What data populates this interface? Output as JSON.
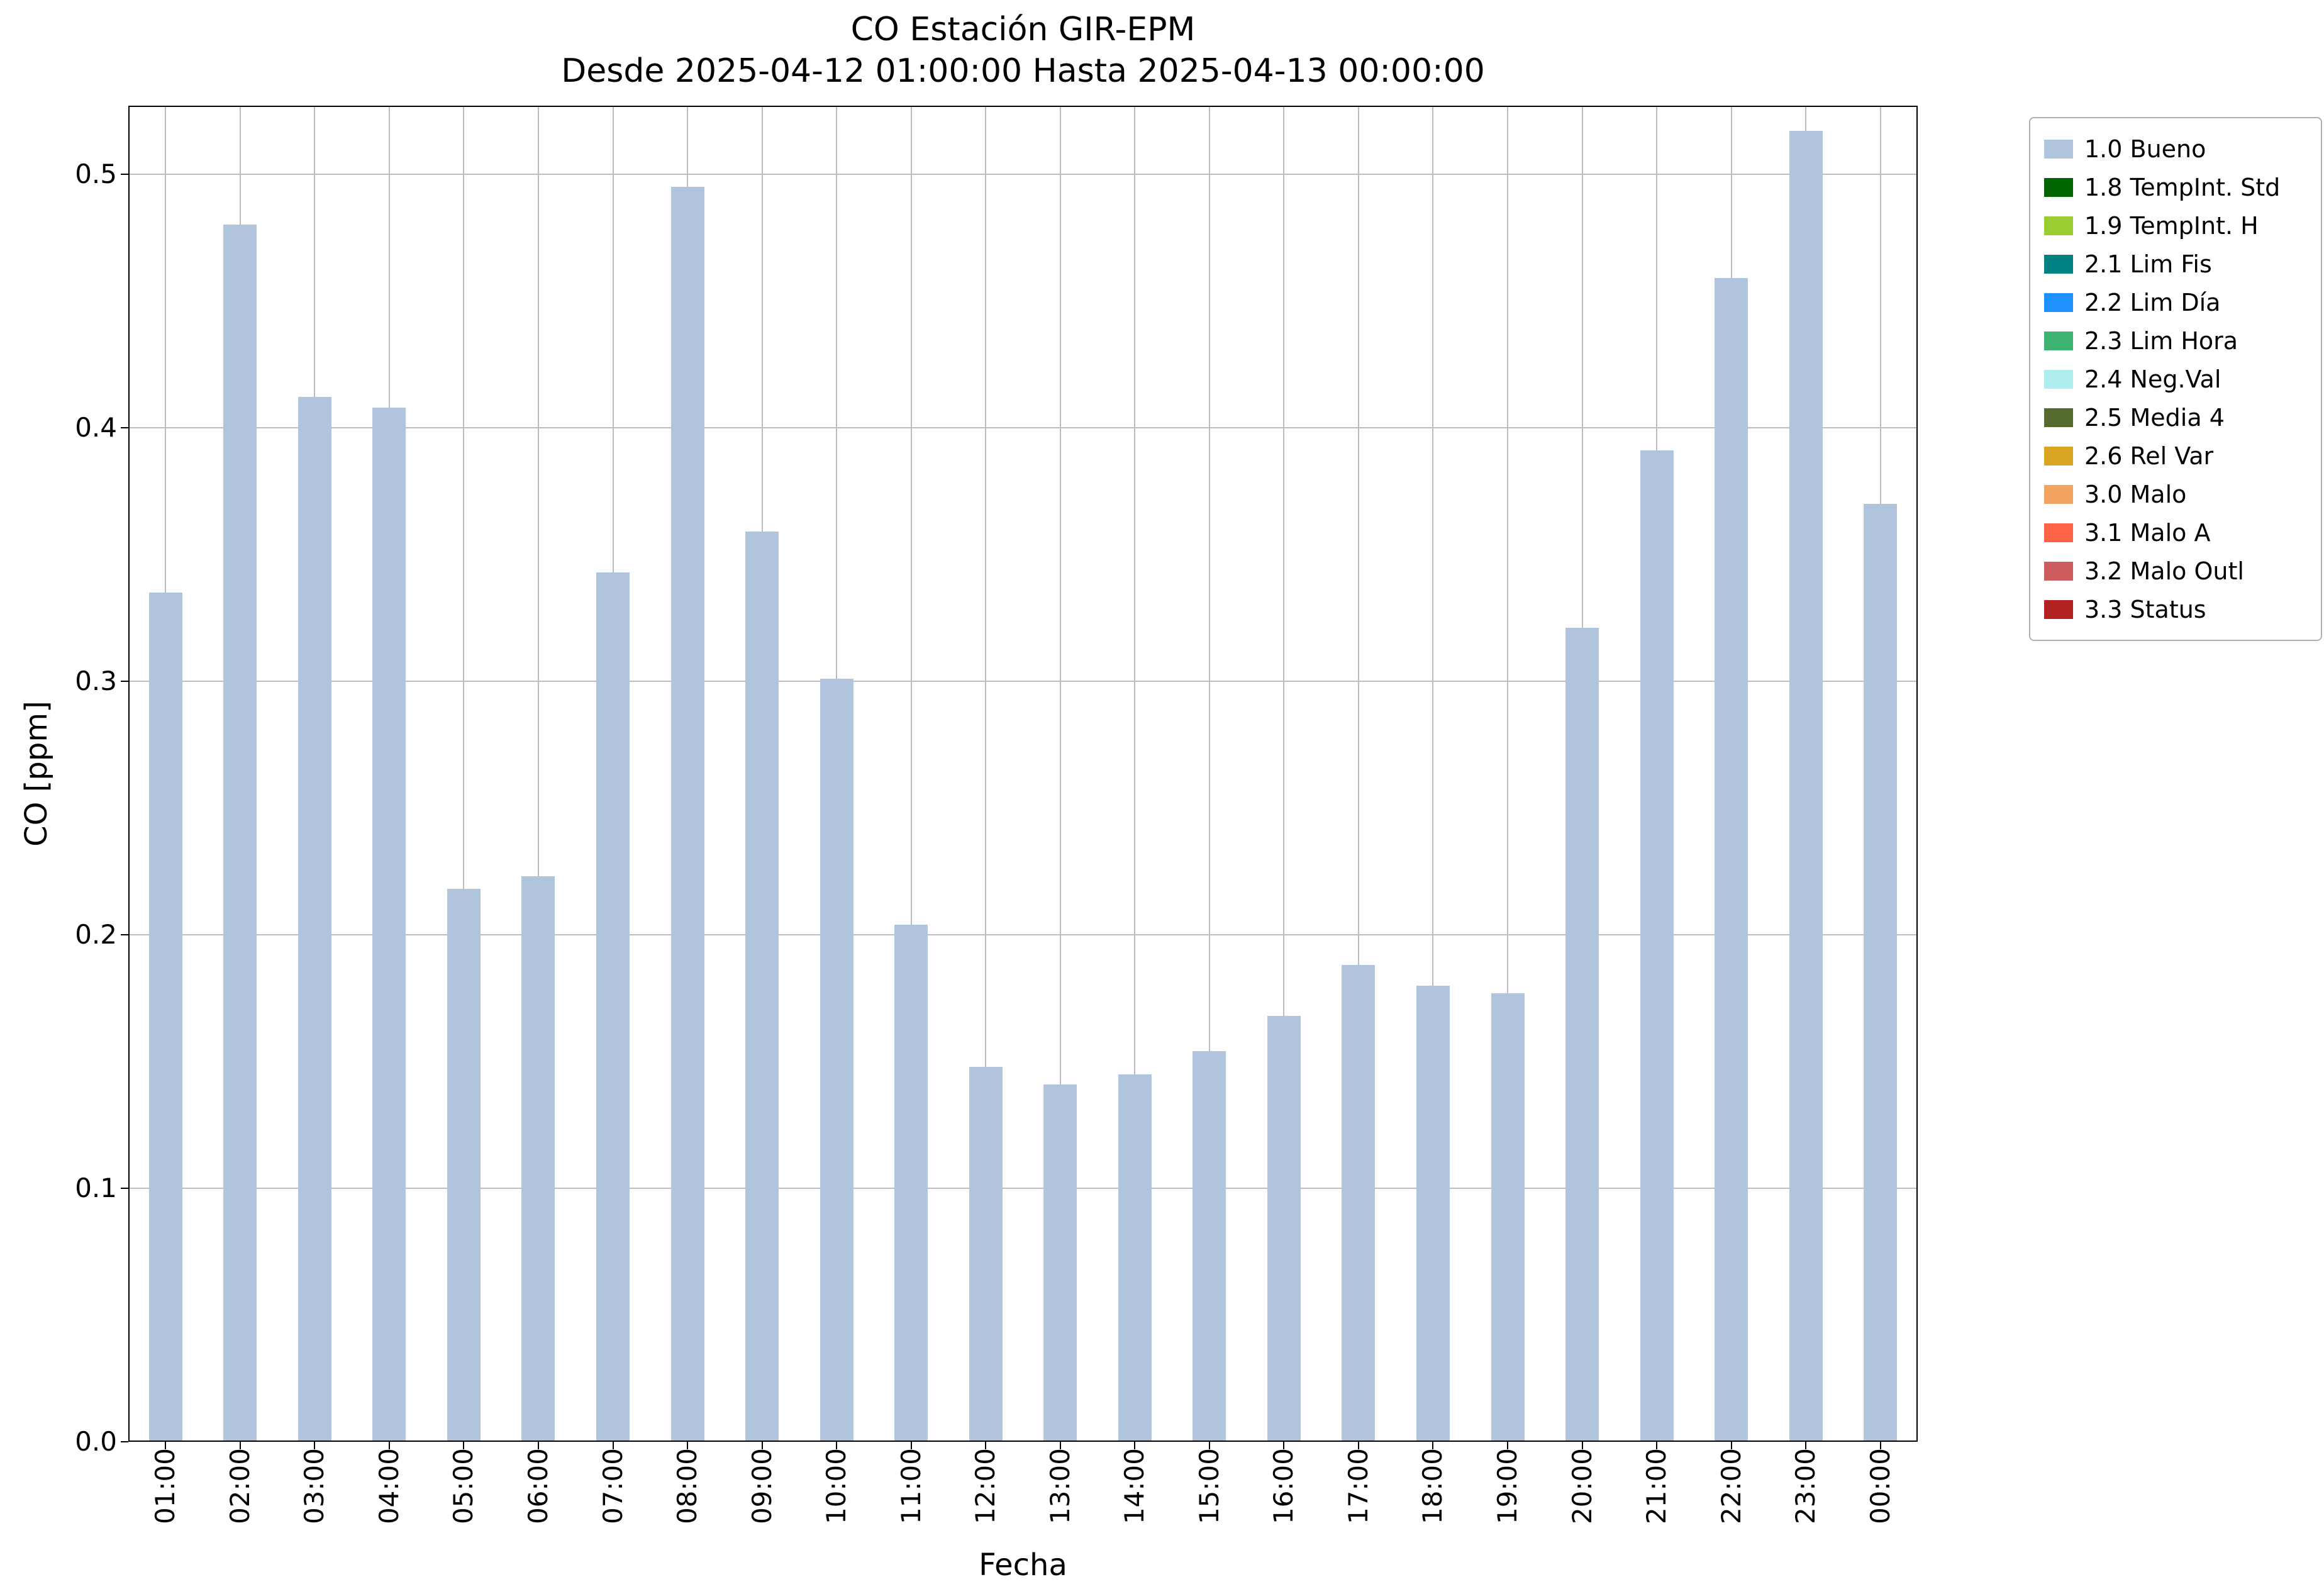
{
  "chart_data": {
    "type": "bar",
    "title": "CO Estación GIR-EPM",
    "subtitle": "Desde 2025-04-12 01:00:00 Hasta 2025-04-13 00:00:00",
    "xlabel": "Fecha",
    "ylabel": "CO [ppm]",
    "ylim": [
      0,
      0.527
    ],
    "yticks": [
      0,
      0.1,
      0.2,
      0.3,
      0.4,
      0.5
    ],
    "ytick_labels": [
      "0.0",
      "0.1",
      "0.2",
      "0.3",
      "0.4",
      "0.5"
    ],
    "grid": true,
    "bar_color": "#b0c4de",
    "categories": [
      "01:00",
      "02:00",
      "03:00",
      "04:00",
      "05:00",
      "06:00",
      "07:00",
      "08:00",
      "09:00",
      "10:00",
      "11:00",
      "12:00",
      "13:00",
      "14:00",
      "15:00",
      "16:00",
      "17:00",
      "18:00",
      "19:00",
      "20:00",
      "21:00",
      "22:00",
      "23:00",
      "00:00"
    ],
    "values": [
      0.335,
      0.48,
      0.412,
      0.408,
      0.218,
      0.223,
      0.343,
      0.495,
      0.359,
      0.301,
      0.204,
      0.148,
      0.141,
      0.145,
      0.154,
      0.168,
      0.188,
      0.18,
      0.177,
      0.321,
      0.391,
      0.459,
      0.517,
      0.37
    ],
    "series": [
      {
        "name": "1.0 Bueno",
        "color": "#b0c4de"
      }
    ],
    "legend_position": "outside upper right",
    "legend": [
      {
        "label": "1.0 Bueno",
        "color": "#b0c4de"
      },
      {
        "label": "1.8 TempInt. Std",
        "color": "#006400"
      },
      {
        "label": "1.9 TempInt. H",
        "color": "#9acd32"
      },
      {
        "label": "2.1 Lim Fis",
        "color": "#008080"
      },
      {
        "label": "2.2 Lim Día",
        "color": "#1e90ff"
      },
      {
        "label": "2.3 Lim Hora",
        "color": "#3cb371"
      },
      {
        "label": "2.4 Neg.Val",
        "color": "#afeeee"
      },
      {
        "label": "2.5 Media 4",
        "color": "#556b2f"
      },
      {
        "label": "2.6 Rel Var",
        "color": "#daa520"
      },
      {
        "label": "3.0 Malo",
        "color": "#f4a460"
      },
      {
        "label": "3.1 Malo A",
        "color": "#ff6347"
      },
      {
        "label": "3.2 Malo Outl",
        "color": "#cd5c5c"
      },
      {
        "label": "3.3 Status",
        "color": "#b22222"
      }
    ]
  }
}
